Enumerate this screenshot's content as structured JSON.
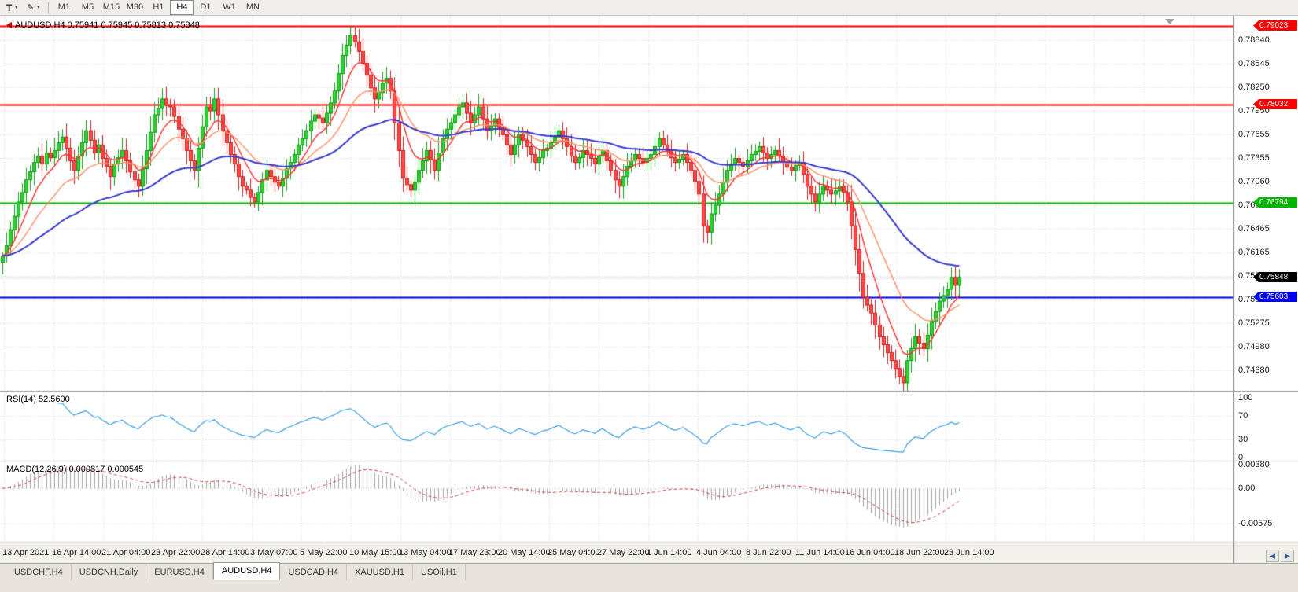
{
  "toolbar": {
    "chart_type_label": "T",
    "draw_tool_icon": "pencil",
    "timeframes": [
      "M1",
      "M5",
      "M15",
      "M30",
      "H1",
      "H4",
      "D1",
      "W1",
      "MN"
    ],
    "active_timeframe": "H4"
  },
  "chart_data": {
    "type": "candlestick",
    "symbol": "AUDUSD",
    "timeframe": "H4",
    "title": "AUDUSD,H4 0.75941 0.75945 0.75813 0.75848",
    "ohlc": {
      "open": "0.75941",
      "high": "0.75945",
      "low": "0.75813",
      "close": "0.75848"
    },
    "price_axis": {
      "top": 0.7915,
      "bottom": 0.7442,
      "ticks": [
        "0.78840",
        "0.78545",
        "0.78250",
        "0.77950",
        "0.77655",
        "0.77355",
        "0.77060",
        "0.76760",
        "0.76465",
        "0.76165",
        "0.75870",
        "0.75570",
        "0.75275",
        "0.74980",
        "0.74680"
      ]
    },
    "time_axis": {
      "ticks": [
        "13 Apr 2021",
        "16 Apr 14:00",
        "21 Apr 04:00",
        "23 Apr 22:00",
        "28 Apr 14:00",
        "3 May 07:00",
        "5 May 22:00",
        "10 May 15:00",
        "13 May 04:00",
        "17 May 23:00",
        "20 May 14:00",
        "25 May 04:00",
        "27 May 22:00",
        "1 Jun 14:00",
        "4 Jun 04:00",
        "8 Jun 22:00",
        "11 Jun 14:00",
        "16 Jun 04:00",
        "18 Jun 22:00",
        "23 Jun 14:00"
      ]
    },
    "closes": [
      0.7612,
      0.7625,
      0.7645,
      0.7662,
      0.768,
      0.7692,
      0.7708,
      0.7718,
      0.773,
      0.7738,
      0.7728,
      0.7742,
      0.7736,
      0.7745,
      0.7755,
      0.7762,
      0.7748,
      0.7732,
      0.772,
      0.7738,
      0.7755,
      0.777,
      0.7758,
      0.7742,
      0.7752,
      0.7735,
      0.7725,
      0.7712,
      0.7728,
      0.7736,
      0.7745,
      0.7732,
      0.7718,
      0.7708,
      0.77,
      0.7722,
      0.7745,
      0.7768,
      0.779,
      0.7798,
      0.781,
      0.7802,
      0.78,
      0.7788,
      0.7772,
      0.776,
      0.7745,
      0.7732,
      0.772,
      0.7748,
      0.7775,
      0.78,
      0.7795,
      0.781,
      0.779,
      0.777,
      0.7755,
      0.774,
      0.7728,
      0.7712,
      0.77,
      0.7695,
      0.7686,
      0.768,
      0.7692,
      0.7708,
      0.772,
      0.7712,
      0.7705,
      0.77,
      0.771,
      0.7722,
      0.773,
      0.774,
      0.7752,
      0.776,
      0.777,
      0.7782,
      0.779,
      0.7786,
      0.778,
      0.7792,
      0.7805,
      0.782,
      0.7842,
      0.7865,
      0.7878,
      0.789,
      0.7882,
      0.787,
      0.7855,
      0.784,
      0.7824,
      0.781,
      0.7818,
      0.783,
      0.7836,
      0.782,
      0.778,
      0.7745,
      0.771,
      0.7702,
      0.7695,
      0.7705,
      0.772,
      0.7732,
      0.7745,
      0.7733,
      0.772,
      0.7742,
      0.776,
      0.7772,
      0.778,
      0.779,
      0.78,
      0.7805,
      0.7792,
      0.778,
      0.779,
      0.78,
      0.7785,
      0.777,
      0.7776,
      0.7785,
      0.7774,
      0.7765,
      0.7752,
      0.774,
      0.7752,
      0.7765,
      0.7758,
      0.775,
      0.774,
      0.773,
      0.7736,
      0.7745,
      0.7748,
      0.7755,
      0.7762,
      0.777,
      0.776,
      0.775,
      0.7738,
      0.773,
      0.7736,
      0.7745,
      0.774,
      0.7735,
      0.7728,
      0.7738,
      0.7745,
      0.7732,
      0.772,
      0.7708,
      0.77,
      0.7712,
      0.7725,
      0.7732,
      0.774,
      0.7735,
      0.773,
      0.7735,
      0.774,
      0.775,
      0.776,
      0.7752,
      0.7745,
      0.7736,
      0.773,
      0.7734,
      0.774,
      0.773,
      0.772,
      0.7706,
      0.769,
      0.765,
      0.7642,
      0.7665,
      0.7676,
      0.769,
      0.7705,
      0.772,
      0.7728,
      0.7735,
      0.773,
      0.7725,
      0.7732,
      0.774,
      0.7744,
      0.775,
      0.7742,
      0.7735,
      0.774,
      0.7745,
      0.7738,
      0.773,
      0.7724,
      0.772,
      0.7726,
      0.773,
      0.7715,
      0.77,
      0.769,
      0.768,
      0.769,
      0.77,
      0.7695,
      0.769,
      0.7694,
      0.77,
      0.7692,
      0.768,
      0.765,
      0.762,
      0.759,
      0.756,
      0.755,
      0.754,
      0.7525,
      0.751,
      0.75,
      0.749,
      0.748,
      0.747,
      0.746,
      0.7452,
      0.748,
      0.7495,
      0.751,
      0.7502,
      0.7495,
      0.7512,
      0.753,
      0.7542,
      0.7555,
      0.7562,
      0.757,
      0.7585,
      0.7575,
      0.7585
    ],
    "candle_colors": {
      "up": "#2fd133",
      "up_border": "#0f9f13",
      "down": "#ff4a4a",
      "down_border": "#d02020"
    },
    "overlays": {
      "moving_averages": [
        {
          "period": 8,
          "color": "#ff2e2e"
        },
        {
          "period": 20,
          "color": "#ff8e66"
        },
        {
          "period": 55,
          "color": "#3939cf"
        }
      ],
      "hlines": [
        {
          "price": 0.79023,
          "label": "0.79023",
          "color": "#ff0000",
          "width": 2
        },
        {
          "price": 0.78032,
          "label": "0.78032",
          "color": "#ff0000",
          "width": 2
        },
        {
          "price": 0.76794,
          "label": "0.76794",
          "color": "#00b400",
          "width": 2
        },
        {
          "price": 0.75603,
          "label": "0.75603",
          "color": "#0000ee",
          "width": 2
        }
      ],
      "bid": {
        "price": 0.75848,
        "label": "0.75848",
        "color": "#000000",
        "line_color": "#8c8c8c"
      }
    },
    "indicators": {
      "rsi": {
        "label": "RSI(14) 52.5600",
        "period": 14,
        "value": "52.5600",
        "levels": [
          "100",
          "70",
          "30",
          "0"
        ],
        "level_values": [
          100,
          70,
          30,
          0
        ],
        "color": "#3da0df"
      },
      "macd": {
        "label": "MACD(12,26,9) 0.000817 0.000545",
        "fast": 12,
        "slow": 26,
        "signal_period": 9,
        "values": [
          "0.000817",
          "0.000545"
        ],
        "axis_labels": [
          "0.00380",
          "0.00",
          "-0.00575"
        ],
        "axis_values": [
          0.0038,
          0,
          -0.00575
        ],
        "hist_color": "#a6a6a6",
        "signal_color": "#d24040"
      }
    }
  },
  "tabs": {
    "items": [
      "USDCHF,H4",
      "USDCNH,Daily",
      "EURUSD,H4",
      "AUDUSD,H4",
      "USDCAD,H4",
      "XAUUSD,H1",
      "USOil,H1"
    ],
    "active": "AUDUSD,H4",
    "scroll_left_icon": "left-arrow",
    "scroll_right_icon": "right-arrow"
  }
}
